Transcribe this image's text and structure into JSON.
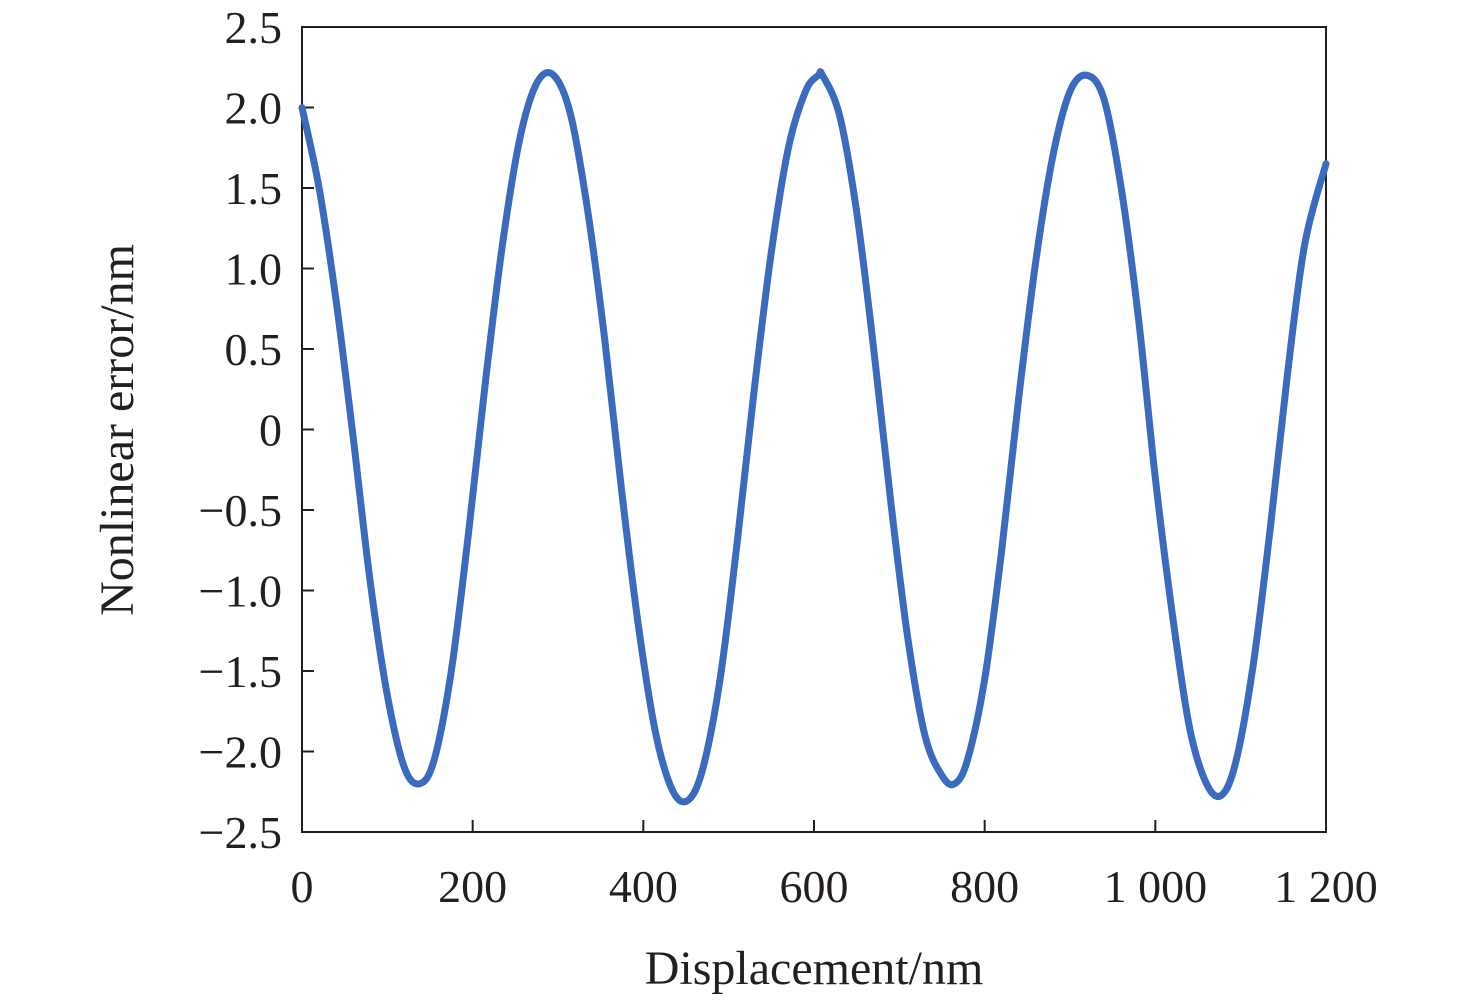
{
  "chart_data": {
    "type": "line",
    "title": "",
    "xlabel": "Displacement/nm",
    "ylabel": "Nonlinear error/nm",
    "xlim": [
      0,
      1200
    ],
    "ylim": [
      -2.5,
      2.5
    ],
    "x_ticks": [
      0,
      200,
      400,
      600,
      800,
      1000,
      1200
    ],
    "x_tick_labels": [
      "0",
      "200",
      "400",
      "600",
      "800",
      "1 000",
      "1 200"
    ],
    "y_ticks": [
      2.5,
      2.0,
      1.5,
      1.0,
      0.5,
      0,
      -0.5,
      -1.0,
      -1.5,
      -2.0,
      -2.5
    ],
    "y_tick_labels": [
      "2.5",
      "2.0",
      "1.5",
      "1.0",
      "0.5",
      "0",
      "−0.5",
      "−1.0",
      "−1.5",
      "−2.0",
      "−2.5"
    ],
    "grid": false,
    "legend": "none",
    "series": [
      {
        "color": "#3a6bbf",
        "x": [
          0,
          20,
          40,
          60,
          80,
          100,
          120,
          138,
          155,
          175,
          195,
          215,
          235,
          255,
          275,
          295,
          315,
          335,
          355,
          375,
          395,
          415,
          435,
          453,
          470,
          490,
          510,
          530,
          550,
          570,
          590,
          605,
          610,
          630,
          650,
          670,
          690,
          710,
          730,
          750,
          765,
          780,
          800,
          820,
          840,
          860,
          880,
          900,
          920,
          940,
          960,
          980,
          1000,
          1020,
          1040,
          1060,
          1078,
          1095,
          1115,
          1135,
          1155,
          1175,
          1200
        ],
        "y": [
          2.0,
          1.5,
          0.8,
          -0.05,
          -0.95,
          -1.65,
          -2.1,
          -2.2,
          -2.05,
          -1.5,
          -0.65,
          0.3,
          1.15,
          1.8,
          2.15,
          2.2,
          1.95,
          1.35,
          0.55,
          -0.4,
          -1.25,
          -1.9,
          -2.25,
          -2.3,
          -2.1,
          -1.55,
          -0.7,
          0.25,
          1.1,
          1.75,
          2.1,
          2.2,
          2.2,
          1.95,
          1.35,
          0.5,
          -0.45,
          -1.3,
          -1.9,
          -2.15,
          -2.2,
          -2.05,
          -1.55,
          -0.75,
          0.2,
          1.05,
          1.7,
          2.1,
          2.2,
          2.05,
          1.5,
          0.7,
          -0.3,
          -1.15,
          -1.85,
          -2.2,
          -2.27,
          -2.05,
          -1.45,
          -0.6,
          0.35,
          1.15,
          1.65
        ]
      }
    ]
  }
}
